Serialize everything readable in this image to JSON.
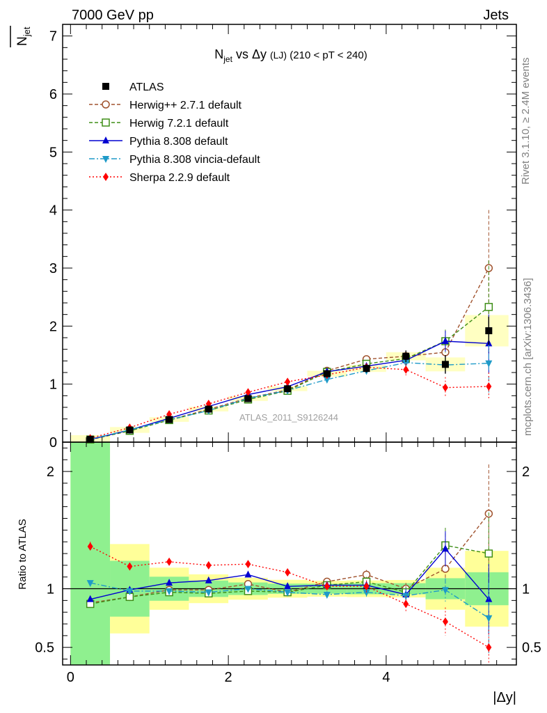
{
  "header": {
    "left": "7000 GeV pp",
    "right": "Jets",
    "side_top": "Rivet 3.1.10, ≥ 2.4M events",
    "side_bottom": "mcplots.cern.ch [arXiv:1306.3436]",
    "watermark": "ATLAS_2011_S9126244"
  },
  "chart_data": {
    "type": "line",
    "title": {
      "main": "N",
      "main_sub": "jet",
      "mid": " vs Δy ",
      "small": "(LJ)",
      "rest": " (210 < pT < 240)"
    },
    "ylabel": {
      "main": "N",
      "sub": "jet"
    },
    "ratio_ylabel": "Ratio to ATLAS",
    "xlabel": "|Δy|",
    "xlim": [
      -0.1,
      5.65
    ],
    "ylim": [
      0,
      7.2
    ],
    "ratio_ylim": [
      0.35,
      2.25
    ],
    "x_ticks": [
      "0",
      "2",
      "4"
    ],
    "y_ticks": [
      "0",
      "1",
      "2",
      "3",
      "4",
      "5",
      "6",
      "7"
    ],
    "ratio_y_ticks": [
      "0.5",
      "1",
      "2"
    ],
    "x": [
      0.25,
      0.75,
      1.25,
      1.75,
      2.25,
      2.75,
      3.25,
      3.75,
      4.25,
      4.75,
      5.3
    ],
    "data": {
      "name": "ATLAS",
      "values": [
        0.05,
        0.21,
        0.39,
        0.57,
        0.75,
        0.92,
        1.18,
        1.27,
        1.48,
        1.34,
        1.92
      ],
      "errors": [
        0.01,
        0.01,
        0.02,
        0.02,
        0.03,
        0.04,
        0.05,
        0.07,
        0.1,
        0.16,
        0.24
      ],
      "band_inner": [
        0.07,
        0.05,
        0.04,
        0.04,
        0.04,
        0.04,
        0.05,
        0.06,
        0.07,
        0.12,
        0.27
      ],
      "band_outer": [
        0.12,
        0.08,
        0.07,
        0.07,
        0.07,
        0.07,
        0.08,
        0.09,
        0.11,
        0.24,
        0.62
      ]
    },
    "series": [
      {
        "name": "Herwig++ 2.7.1 default",
        "color": "#a0522d",
        "dash": "5,3",
        "marker": "circle-open",
        "values": [
          0.045,
          0.195,
          0.385,
          0.565,
          0.76,
          0.9,
          1.23,
          1.43,
          1.48,
          1.55,
          3.0
        ],
        "errors": [
          0.003,
          0.005,
          0.01,
          0.012,
          0.015,
          0.02,
          0.03,
          0.05,
          0.08,
          0.25,
          1.0
        ]
      },
      {
        "name": "Herwig 7.2.1 default",
        "color": "#3e8e17",
        "dash": "5,3",
        "marker": "square-open",
        "values": [
          0.044,
          0.195,
          0.38,
          0.545,
          0.735,
          0.885,
          1.21,
          1.35,
          1.44,
          1.74,
          2.33
        ],
        "errors": [
          0.003,
          0.005,
          0.01,
          0.012,
          0.015,
          0.02,
          0.03,
          0.05,
          0.08,
          0.2,
          0.8
        ]
      },
      {
        "name": "Pythia 8.308 default",
        "color": "#0000d0",
        "dash": "",
        "marker": "triangle-up",
        "values": [
          0.046,
          0.21,
          0.41,
          0.615,
          0.82,
          0.955,
          1.215,
          1.31,
          1.41,
          1.74,
          1.7
        ],
        "errors": [
          0.003,
          0.005,
          0.01,
          0.012,
          0.015,
          0.02,
          0.03,
          0.05,
          0.08,
          0.18,
          0.5
        ]
      },
      {
        "name": "Pythia 8.308 vincia-default",
        "color": "#1e9ac8",
        "dash": "8,3,2,3",
        "marker": "triangle-down",
        "values": [
          0.053,
          0.21,
          0.385,
          0.545,
          0.755,
          0.89,
          1.08,
          1.23,
          1.37,
          1.33,
          1.36
        ],
        "errors": [
          0.003,
          0.005,
          0.01,
          0.012,
          0.015,
          0.02,
          0.03,
          0.05,
          0.08,
          0.15,
          0.55
        ]
      },
      {
        "name": "Sherpa 2.2.9 default",
        "color": "#ff0000",
        "dash": "2,3",
        "marker": "diamond",
        "values": [
          0.068,
          0.25,
          0.48,
          0.66,
          0.86,
          1.04,
          1.16,
          1.29,
          1.25,
          0.94,
          0.96
        ],
        "errors": [
          0.004,
          0.008,
          0.015,
          0.02,
          0.025,
          0.03,
          0.04,
          0.06,
          0.1,
          0.18,
          0.24
        ]
      }
    ],
    "ratios": [
      {
        "values": [
          0.88,
          0.93,
          0.99,
          0.99,
          1.04,
          0.97,
          1.06,
          1.12,
          1.0,
          1.17,
          1.64
        ],
        "errors": [
          0.02,
          0.02,
          0.02,
          0.02,
          0.02,
          0.02,
          0.03,
          0.04,
          0.05,
          0.19,
          0.42
        ]
      },
      {
        "values": [
          0.87,
          0.93,
          0.97,
          0.96,
          0.98,
          0.97,
          1.03,
          1.06,
          0.97,
          1.37,
          1.3
        ],
        "errors": [
          0.02,
          0.02,
          0.02,
          0.02,
          0.02,
          0.02,
          0.03,
          0.04,
          0.05,
          0.15,
          0.35
        ]
      },
      {
        "values": [
          0.91,
          0.99,
          1.05,
          1.07,
          1.12,
          1.02,
          1.03,
          1.03,
          0.95,
          1.34,
          0.91
        ],
        "errors": [
          0.02,
          0.02,
          0.02,
          0.02,
          0.02,
          0.02,
          0.03,
          0.04,
          0.05,
          0.15,
          0.3
        ]
      },
      {
        "values": [
          1.05,
          0.98,
          0.98,
          0.97,
          1.0,
          0.97,
          0.95,
          0.97,
          0.94,
          0.99,
          0.75
        ],
        "errors": [
          0.02,
          0.02,
          0.02,
          0.02,
          0.02,
          0.02,
          0.03,
          0.04,
          0.05,
          0.1,
          0.3
        ]
      },
      {
        "values": [
          1.36,
          1.19,
          1.23,
          1.2,
          1.21,
          1.14,
          1.02,
          1.02,
          0.87,
          0.72,
          0.5
        ],
        "errors": [
          0.04,
          0.03,
          0.03,
          0.03,
          0.03,
          0.03,
          0.04,
          0.05,
          0.07,
          0.12,
          0.15
        ]
      }
    ]
  }
}
